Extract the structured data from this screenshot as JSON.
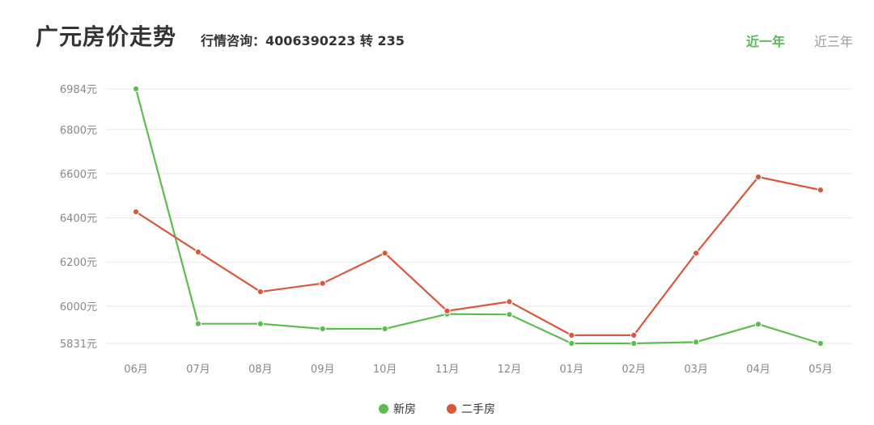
{
  "header": {
    "title": "广元房价走势",
    "hotline": "行情咨询：4006390223 转 235"
  },
  "tabs": [
    {
      "label": "近一年",
      "active": true
    },
    {
      "label": "近三年",
      "active": false
    }
  ],
  "colors": {
    "new_house": "#5cbd4f",
    "second_hand": "#d9573a",
    "active_tab": "#5cb85c",
    "grid": "#e8e8e8",
    "axis_text": "#888888"
  },
  "chart_data": {
    "type": "line",
    "categories": [
      "06月",
      "07月",
      "08月",
      "09月",
      "10月",
      "11月",
      "12月",
      "01月",
      "02月",
      "03月",
      "04月",
      "05月"
    ],
    "y_tick_labels": [
      "6984元",
      "6800元",
      "6600元",
      "6400元",
      "6200元",
      "6000元",
      "5831元"
    ],
    "y_ticks": [
      6984,
      6800,
      6600,
      6400,
      6200,
      6000,
      5831
    ],
    "ylim": [
      5831,
      6984
    ],
    "grid": true,
    "legend_position": "bottom",
    "series": [
      {
        "name": "新房",
        "key": "new_house",
        "values": [
          6984,
          5920,
          5920,
          5897,
          5897,
          5964,
          5962,
          5831,
          5831,
          5837,
          5918,
          5831
        ]
      },
      {
        "name": "二手房",
        "key": "second_hand",
        "values": [
          6427,
          6245,
          6065,
          6103,
          6240,
          5978,
          6020,
          5868,
          5868,
          6240,
          6585,
          6526
        ]
      }
    ]
  }
}
